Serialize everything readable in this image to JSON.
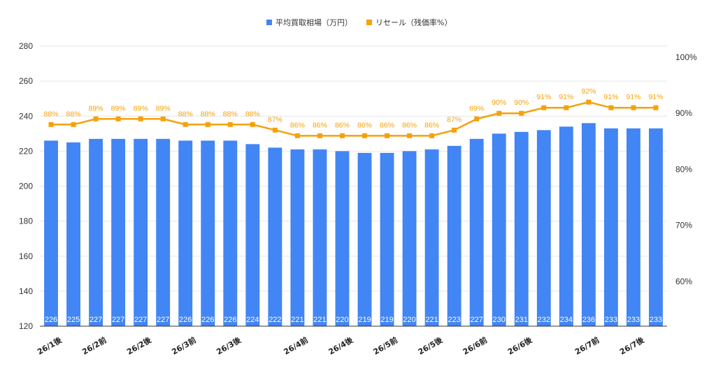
{
  "chart_data": {
    "type": "bar",
    "title": "",
    "legend_position": "top-center",
    "grid": true,
    "colors": {
      "bars": "#4285f4",
      "line": "#f5a10a",
      "grid": "#e6e6e6"
    },
    "categories": [
      "c1",
      "c2",
      "c3",
      "c4",
      "c5",
      "c6",
      "c7",
      "c8",
      "c9",
      "c10",
      "c11",
      "c12",
      "c13",
      "c14",
      "c15",
      "c16",
      "c17",
      "c18",
      "c19",
      "c20",
      "c21",
      "c22",
      "c23",
      "c24",
      "c25",
      "c26",
      "c27",
      "c28"
    ],
    "category_labels": [
      "26/1後",
      "",
      "26/2前",
      "",
      "26/2後",
      "",
      "26/3前",
      "",
      "26/3後",
      "",
      "",
      "26/4前",
      "",
      "26/4後",
      "",
      "26/5前",
      "",
      "26/5後",
      "",
      "26/6前",
      "",
      "26/6後",
      "",
      "",
      "26/7前",
      "",
      "26/7後",
      ""
    ],
    "series": [
      {
        "name": "平均買取相場（万円）",
        "type": "bar",
        "axis": "left",
        "values": [
          226,
          225,
          227,
          227,
          227,
          227,
          226,
          226,
          226,
          224,
          222,
          221,
          221,
          220,
          219,
          219,
          220,
          221,
          223,
          227,
          230,
          231,
          232,
          234,
          236,
          233,
          233,
          233
        ]
      },
      {
        "name": "リセール（残価率%）",
        "type": "line",
        "axis": "right",
        "values": [
          88,
          88,
          89,
          89,
          89,
          89,
          88,
          88,
          88,
          88,
          87,
          86,
          86,
          86,
          86,
          86,
          86,
          86,
          87,
          89,
          90,
          90,
          91,
          91,
          92,
          91,
          91,
          91
        ]
      }
    ],
    "ylim": [
      120,
      280
    ],
    "yticks": [
      "120",
      "140",
      "160",
      "180",
      "200",
      "220",
      "240",
      "260",
      "280"
    ],
    "y2lim": [
      52,
      102
    ],
    "y2ticks": [
      "60%",
      "70%",
      "80%",
      "90%",
      "100%"
    ],
    "y2tick_values": [
      60,
      70,
      80,
      90,
      100
    ],
    "line_label_suffix": "%"
  }
}
